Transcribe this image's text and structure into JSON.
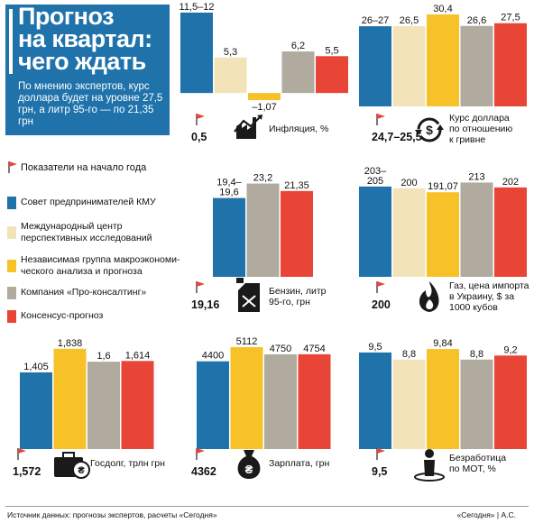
{
  "header": {
    "title": "Прогноз\nна квартал:\nчего ждать",
    "subtitle": "По мнению экспертов, курс доллара будет на уровне 27,5 грн, а литр 95-го — по 21,35 грн"
  },
  "legend": {
    "start_label": "Показатели на начало года",
    "items": [
      {
        "label": "Совет предпринимателей КМУ",
        "color": "#1f72aa"
      },
      {
        "label": "Международный центр\nперспективных исследований",
        "color": "#f3e3b8"
      },
      {
        "label": "Независимая группа макроэкономи-\nческого анализа и прогноза",
        "color": "#f6c228"
      },
      {
        "label": "Компания «Про-консалтинг»",
        "color": "#b0aa9f"
      },
      {
        "label": "Консенсус-прогноз",
        "color": "#e84537"
      }
    ]
  },
  "colors": {
    "flag": "#e8443a",
    "series": [
      "#1f72aa",
      "#f3e3b8",
      "#f6c228",
      "#b0aa9f",
      "#e84537"
    ]
  },
  "chart_data": [
    {
      "id": "inflation",
      "type": "bar",
      "title": "Инфляция, %",
      "icon": "factory-icon",
      "baseline": "0,5",
      "ylim": [
        -2,
        12
      ],
      "values": [
        12,
        5.3,
        -1.07,
        6.2,
        5.5
      ],
      "labels": [
        "11,5–12",
        "5,3",
        "–1,07",
        "6,2",
        "5,5"
      ]
    },
    {
      "id": "usd",
      "type": "bar",
      "title": "Курс доллара\nпо отношению\nк гривне",
      "icon": "currency-exchange-icon",
      "baseline": "24,7–25,5",
      "ylim": [
        0,
        31
      ],
      "values": [
        26.5,
        26.5,
        30.4,
        26.6,
        27.5
      ],
      "labels": [
        "26–27",
        "26,5",
        "30,4",
        "26,6",
        "27,5"
      ]
    },
    {
      "id": "petrol",
      "type": "bar",
      "title": "Бензин, литр\n95-го, грн",
      "icon": "fuel-can-icon",
      "baseline": "19,16",
      "ylim": [
        0,
        24
      ],
      "values": [
        19.6,
        23.2,
        21.35
      ],
      "labels": [
        "19,4–\n19,6",
        "23,2",
        "21,35"
      ],
      "series_index": [
        0,
        3,
        4
      ]
    },
    {
      "id": "gas",
      "type": "bar",
      "title": "Газ, цена импорта\nв Украину, $ за\n1000 кубов",
      "icon": "gas-flame-icon",
      "baseline": "200",
      "ylim": [
        0,
        218
      ],
      "values": [
        204,
        200,
        191.07,
        213,
        202
      ],
      "labels": [
        "203–\n205",
        "200",
        "191,07",
        "213",
        "202"
      ]
    },
    {
      "id": "debt",
      "type": "bar",
      "title": "Госдолг, трлн грн",
      "icon": "briefcase-icon",
      "baseline": "1,572",
      "ylim": [
        0,
        1.9
      ],
      "values": [
        1.405,
        1.838,
        1.6,
        1.614
      ],
      "labels": [
        "1,405",
        "1,838",
        "1,6",
        "1,614"
      ],
      "series_index": [
        0,
        2,
        3,
        4
      ]
    },
    {
      "id": "salary",
      "type": "bar",
      "title": "Зарплата, грн",
      "icon": "money-bag-icon",
      "baseline": "4362",
      "ylim": [
        0,
        5200
      ],
      "values": [
        4400,
        5112,
        4750,
        4754
      ],
      "labels": [
        "4400",
        "5112",
        "4750",
        "4754"
      ],
      "series_index": [
        0,
        2,
        3,
        4
      ]
    },
    {
      "id": "unemployment",
      "type": "bar",
      "title": "Безработица\nпо МОТ, %",
      "icon": "person-icon",
      "baseline": "9,5",
      "ylim": [
        0,
        10.2
      ],
      "values": [
        9.5,
        8.8,
        9.84,
        8.8,
        9.2
      ],
      "labels": [
        "9,5",
        "8,8",
        "9,84",
        "8,8",
        "9,2"
      ]
    }
  ],
  "footer": {
    "source": "Источник данных: прогнозы экспертов, расчеты «Сегодня»",
    "credit": "«Сегодня» | А.С."
  }
}
